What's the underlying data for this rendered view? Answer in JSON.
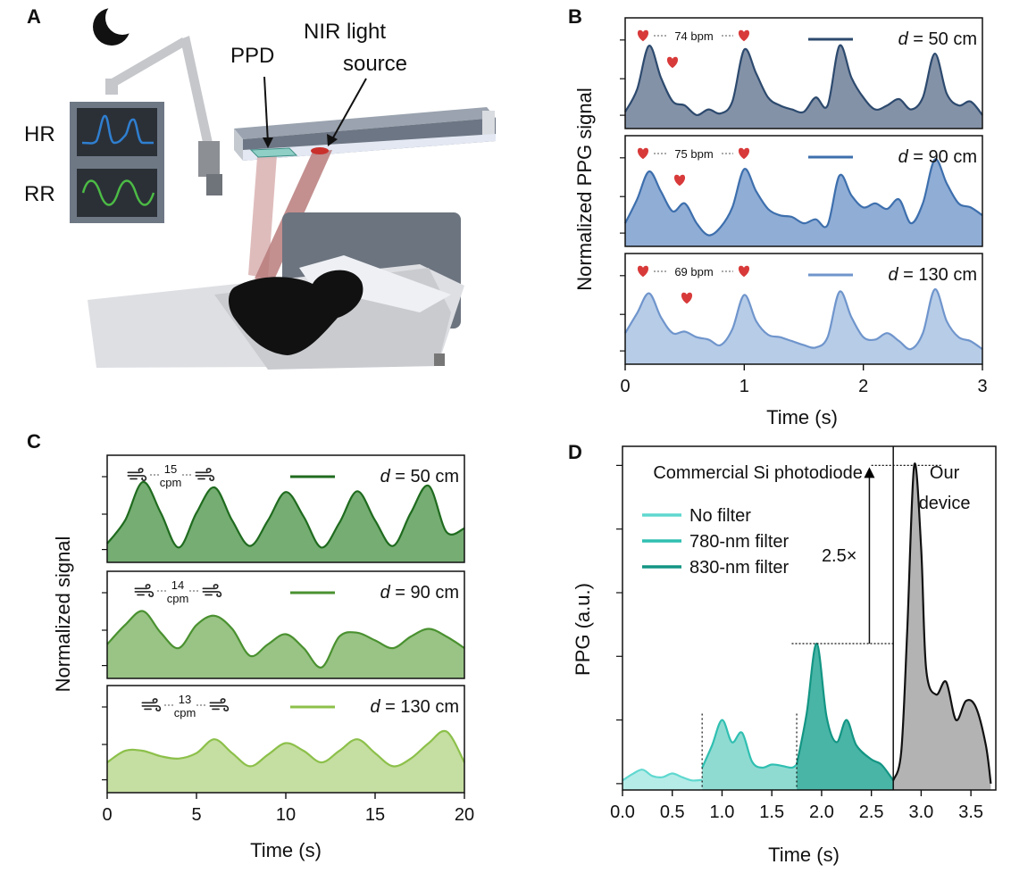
{
  "panels": {
    "A": {
      "letter": "A",
      "hr_label": "HR",
      "rr_label": "RR",
      "ppd_label": "PPD",
      "nir_label_line1": "NIR light",
      "nir_label_line2": "source",
      "colors": {
        "hr_wave": "#2f7fd0",
        "rr_wave": "#4cbb45",
        "monitor": "#6e7885",
        "arm": "#c5c7cb",
        "beam": "#b87b7b",
        "bar": "#6d7684",
        "person": "#111111"
      }
    },
    "B": {
      "letter": "B"
    },
    "C": {
      "letter": "C"
    },
    "D": {
      "letter": "D",
      "left_title": "Commercial Si photodiode",
      "right_title_line1": "Our",
      "right_title_line2": "device",
      "arrow_label": "2.5×"
    }
  },
  "chart_data": [
    {
      "id": "B",
      "type": "area",
      "xlabel": "Time (s)",
      "ylabel": "Normalized PPG signal",
      "xlim": [
        0,
        3
      ],
      "xticks": [
        0,
        1,
        2,
        3
      ],
      "x_tick_labels": [
        "0",
        "1",
        "2",
        "3"
      ],
      "series": [
        {
          "name": "d = 50 cm",
          "legend_var": "d",
          "legend_rest": " = 50 cm",
          "rate_label": "74 bpm",
          "color": "#2d4a6e",
          "fill": "#7d8ca3",
          "x": [
            0,
            0.1,
            0.2,
            0.3,
            0.4,
            0.5,
            0.6,
            0.7,
            0.8,
            0.9,
            1.0,
            1.1,
            1.2,
            1.3,
            1.4,
            1.5,
            1.6,
            1.7,
            1.8,
            1.9,
            2.0,
            2.1,
            2.2,
            2.3,
            2.4,
            2.5,
            2.6,
            2.7,
            2.8,
            2.9,
            3.0
          ],
          "y": [
            0.12,
            0.4,
            0.95,
            0.55,
            0.25,
            0.2,
            0.08,
            0.15,
            0.1,
            0.25,
            0.9,
            0.6,
            0.3,
            0.2,
            0.15,
            0.12,
            0.3,
            0.2,
            0.95,
            0.55,
            0.3,
            0.15,
            0.2,
            0.28,
            0.15,
            0.3,
            0.85,
            0.35,
            0.2,
            0.25,
            0.08
          ]
        },
        {
          "name": "d = 90 cm",
          "legend_var": "d",
          "legend_rest": " = 90 cm",
          "rate_label": "75 bpm",
          "color": "#3d6fad",
          "fill": "#8aa9d3",
          "x": [
            0,
            0.1,
            0.2,
            0.3,
            0.4,
            0.5,
            0.6,
            0.7,
            0.8,
            0.9,
            1.0,
            1.1,
            1.2,
            1.3,
            1.4,
            1.5,
            1.6,
            1.7,
            1.8,
            1.9,
            2.0,
            2.1,
            2.2,
            2.3,
            2.4,
            2.5,
            2.6,
            2.7,
            2.8,
            2.9,
            3.0
          ],
          "y": [
            0.2,
            0.5,
            0.85,
            0.6,
            0.35,
            0.45,
            0.2,
            0.05,
            0.15,
            0.4,
            0.88,
            0.6,
            0.38,
            0.3,
            0.28,
            0.2,
            0.25,
            0.18,
            0.8,
            0.55,
            0.4,
            0.45,
            0.38,
            0.5,
            0.2,
            0.45,
            1.0,
            0.7,
            0.45,
            0.4,
            0.3
          ]
        },
        {
          "name": "d = 130 cm",
          "legend_var": "d",
          "legend_rest": " = 130 cm",
          "rate_label": "69 bpm",
          "color": "#6f95cc",
          "fill": "#b3c9e6",
          "x": [
            0,
            0.1,
            0.2,
            0.3,
            0.4,
            0.5,
            0.6,
            0.7,
            0.8,
            0.9,
            1.0,
            1.1,
            1.2,
            1.3,
            1.4,
            1.5,
            1.6,
            1.7,
            1.8,
            1.9,
            2.0,
            2.1,
            2.2,
            2.3,
            2.4,
            2.5,
            2.6,
            2.7,
            2.8,
            2.9,
            3.0
          ],
          "y": [
            0.3,
            0.55,
            0.8,
            0.5,
            0.3,
            0.32,
            0.25,
            0.22,
            0.15,
            0.35,
            0.78,
            0.45,
            0.28,
            0.25,
            0.2,
            0.15,
            0.12,
            0.25,
            0.82,
            0.5,
            0.25,
            0.22,
            0.3,
            0.2,
            0.1,
            0.3,
            0.85,
            0.45,
            0.25,
            0.2,
            0.1
          ]
        }
      ]
    },
    {
      "id": "C",
      "type": "area",
      "xlabel": "Time (s)",
      "ylabel": "Normalized signal",
      "xlim": [
        0,
        20
      ],
      "xticks": [
        0,
        5,
        10,
        15,
        20
      ],
      "x_tick_labels": [
        "0",
        "5",
        "10",
        "15",
        "20"
      ],
      "series": [
        {
          "name": "d = 50 cm",
          "legend_var": "d",
          "legend_rest": " = 50 cm",
          "rate_label": "15",
          "rate_unit": "cpm",
          "color": "#1f6b1f",
          "fill": "#6ea96a",
          "x": [
            0,
            1,
            2,
            3,
            4,
            5,
            6,
            7,
            8,
            9,
            10,
            11,
            12,
            13,
            14,
            15,
            16,
            17,
            18,
            19,
            20
          ],
          "y": [
            0.15,
            0.45,
            0.95,
            0.55,
            0.1,
            0.55,
            0.88,
            0.45,
            0.12,
            0.45,
            0.82,
            0.5,
            0.1,
            0.42,
            0.83,
            0.45,
            0.12,
            0.55,
            0.9,
            0.3,
            0.35
          ]
        },
        {
          "name": "d = 90 cm",
          "legend_var": "d",
          "legend_rest": " = 90 cm",
          "rate_label": "14",
          "rate_unit": "cpm",
          "color": "#4a9130",
          "fill": "#93c17e",
          "x": [
            0,
            1,
            2,
            3,
            4,
            5,
            6,
            7,
            8,
            9,
            10,
            11,
            12,
            13,
            14,
            15,
            16,
            17,
            18,
            19,
            20
          ],
          "y": [
            0.35,
            0.6,
            0.78,
            0.5,
            0.3,
            0.6,
            0.72,
            0.55,
            0.2,
            0.35,
            0.48,
            0.3,
            0.05,
            0.45,
            0.5,
            0.4,
            0.3,
            0.45,
            0.55,
            0.45,
            0.3
          ]
        },
        {
          "name": "d = 130 cm",
          "legend_var": "d",
          "legend_rest": " = 130 cm",
          "rate_label": "13",
          "rate_unit": "cpm",
          "color": "#8cc04a",
          "fill": "#c2dc9c",
          "x": [
            0,
            1,
            2,
            3,
            4,
            5,
            6,
            7,
            8,
            9,
            10,
            11,
            12,
            13,
            14,
            15,
            16,
            17,
            18,
            19,
            20
          ],
          "y": [
            0.3,
            0.45,
            0.45,
            0.38,
            0.35,
            0.42,
            0.6,
            0.42,
            0.25,
            0.4,
            0.55,
            0.45,
            0.3,
            0.45,
            0.6,
            0.42,
            0.25,
            0.35,
            0.55,
            0.7,
            0.3
          ]
        }
      ]
    },
    {
      "id": "D",
      "type": "area",
      "xlabel": "Time (s)",
      "ylabel": "PPG (a.u.)",
      "xlim": [
        0,
        3.75
      ],
      "xticks": [
        0,
        0.5,
        1,
        1.5,
        2,
        2.5,
        3,
        3.5
      ],
      "x_tick_labels": [
        "0.0",
        "0.5",
        "1.0",
        "1.5",
        "2.0",
        "2.5",
        "3.0",
        "3.5"
      ],
      "yticks": [
        0,
        1,
        2,
        3,
        4,
        5
      ],
      "ylim": [
        -0.1,
        5.3
      ],
      "fold_change": 2.5,
      "series": [
        {
          "name": "No filter",
          "color": "#5fd8cf",
          "fill": "#b6ece8",
          "x": [
            0,
            0.1,
            0.2,
            0.3,
            0.4,
            0.5,
            0.6,
            0.7,
            0.8
          ],
          "y": [
            0.05,
            0.15,
            0.22,
            0.12,
            0.1,
            0.16,
            0.1,
            0.05,
            0.06
          ]
        },
        {
          "name": "780-nm filter",
          "color": "#2fbfb1",
          "fill": "#8fdbd2",
          "x": [
            0.8,
            0.9,
            1.0,
            1.1,
            1.2,
            1.3,
            1.4,
            1.5,
            1.6,
            1.7,
            1.75
          ],
          "y": [
            0.25,
            0.6,
            1.0,
            0.65,
            0.8,
            0.35,
            0.25,
            0.3,
            0.28,
            0.25,
            0.3
          ]
        },
        {
          "name": "830-nm filter",
          "color": "#139584",
          "fill": "#49b5a6",
          "x": [
            1.75,
            1.85,
            1.95,
            2.05,
            2.15,
            2.25,
            2.35,
            2.5,
            2.6,
            2.72
          ],
          "y": [
            0.3,
            1.1,
            2.2,
            1.05,
            0.65,
            1.0,
            0.6,
            0.38,
            0.3,
            0.05
          ]
        },
        {
          "name": "Our device",
          "color": "#111111",
          "fill": "#b3b3b3",
          "x": [
            2.72,
            2.8,
            2.86,
            2.93,
            3.0,
            3.05,
            3.15,
            3.25,
            3.35,
            3.45,
            3.55,
            3.65,
            3.7
          ],
          "y": [
            0.05,
            0.5,
            2.4,
            5.0,
            3.7,
            1.8,
            1.4,
            1.6,
            1.0,
            1.3,
            1.2,
            0.6,
            0.0
          ]
        }
      ]
    }
  ]
}
